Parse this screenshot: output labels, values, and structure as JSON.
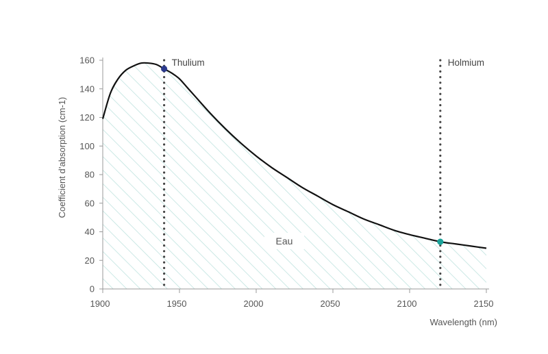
{
  "chart_data": {
    "type": "area",
    "xlabel": "Wavelength (nm)",
    "ylabel": "Coefficient d’absorption (cm-1)",
    "xlim": [
      1900,
      2150
    ],
    "ylim": [
      0,
      160
    ],
    "x_ticks": [
      1900,
      1950,
      2000,
      2050,
      2100,
      2150
    ],
    "y_ticks": [
      0,
      20,
      40,
      60,
      80,
      100,
      120,
      140,
      160
    ],
    "grid": false,
    "series": [
      {
        "name": "Eau",
        "x": [
          1900,
          1905,
          1910,
          1915,
          1920,
          1925,
          1930,
          1935,
          1940,
          1945,
          1950,
          1955,
          1960,
          1970,
          1980,
          1990,
          2000,
          2010,
          2020,
          2030,
          2040,
          2050,
          2060,
          2070,
          2080,
          2090,
          2100,
          2110,
          2120,
          2130,
          2140,
          2150
        ],
        "y": [
          119,
          137,
          147,
          153,
          156,
          158,
          158,
          157,
          154,
          151,
          147,
          141,
          135,
          123,
          112,
          102,
          93,
          85,
          78,
          71,
          65,
          59,
          54,
          49,
          45,
          41,
          38,
          35.5,
          33,
          31.5,
          30,
          28.5
        ]
      }
    ],
    "markers": [
      {
        "label": "Thulium",
        "x": 1940,
        "y": 154,
        "color": "#2b3a8c"
      },
      {
        "label": "Holmium",
        "x": 2120,
        "y": 33,
        "color": "#1aa39a"
      }
    ],
    "colors": {
      "line": "#111111",
      "hatch": "#bfe3df",
      "axis": "#999999",
      "dots": "#444444"
    }
  }
}
